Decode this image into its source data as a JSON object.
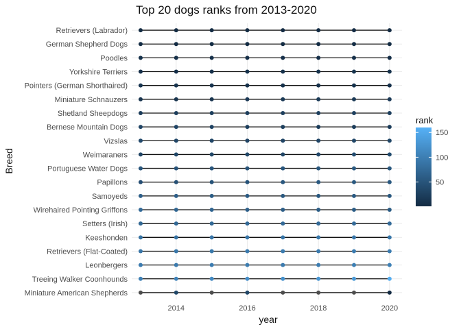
{
  "chart_data": {
    "type": "line",
    "title": "Top 20 dogs ranks from 2013-2020",
    "xlabel": "year",
    "ylabel": "Breed",
    "x": [
      2013,
      2014,
      2015,
      2016,
      2017,
      2018,
      2019,
      2020
    ],
    "x_ticks": [
      2014,
      2016,
      2018,
      2020
    ],
    "xlim": [
      2012.75,
      2020.35
    ],
    "grid": true,
    "categories": [
      "Retrievers (Labrador)",
      "German Shepherd Dogs",
      "Poodles",
      "Yorkshire Terriers",
      "Pointers (German Shorthaired)",
      "Miniature Schnauzers",
      "Shetland Sheepdogs",
      "Bernese Mountain Dogs",
      "Vizslas",
      "Weimaraners",
      "Portuguese Water Dogs",
      "Papillons",
      "Samoyeds",
      "Wirehaired Pointing Griffons",
      "Setters (Irish)",
      "Keeshonden",
      "Retrievers (Flat-Coated)",
      "Leonbergers",
      "Treeing Walker Coonhounds",
      "Miniature American Shepherds"
    ],
    "color_legend": {
      "title": "rank",
      "ticks": [
        50,
        100,
        150
      ],
      "min": 1,
      "max": 160,
      "low_color": "#132B43",
      "high_color": "#56B1F7",
      "na_color": "#4d4d4d"
    },
    "series": [
      {
        "values": [
          1,
          1,
          1,
          1,
          1,
          1,
          1,
          1
        ]
      },
      {
        "values": [
          2,
          2,
          2,
          2,
          2,
          2,
          3,
          3
        ]
      },
      {
        "values": [
          8,
          7,
          7,
          7,
          7,
          7,
          6,
          5
        ]
      },
      {
        "values": [
          6,
          6,
          6,
          9,
          9,
          10,
          10,
          10
        ]
      },
      {
        "values": [
          13,
          12,
          11,
          8,
          8,
          8,
          9,
          8
        ]
      },
      {
        "values": [
          12,
          11,
          12,
          17,
          18,
          19,
          18,
          19
        ]
      },
      {
        "values": [
          21,
          22,
          23,
          24,
          24,
          25,
          25,
          26
        ]
      },
      {
        "values": [
          32,
          32,
          29,
          25,
          25,
          22,
          22,
          22
        ]
      },
      {
        "values": [
          37,
          33,
          32,
          31,
          31,
          32,
          33,
          33
        ]
      },
      {
        "values": [
          32,
          34,
          34,
          35,
          34,
          36,
          40,
          40
        ]
      },
      {
        "values": [
          51,
          49,
          51,
          50,
          51,
          53,
          55,
          55
        ]
      },
      {
        "values": [
          43,
          45,
          47,
          49,
          53,
          55,
          54,
          55
        ]
      },
      {
        "values": [
          63,
          62,
          59,
          58,
          55,
          54,
          55,
          54
        ]
      },
      {
        "values": [
          76,
          71,
          69,
          64,
          62,
          60,
          59,
          59
        ]
      },
      {
        "values": [
          72,
          73,
          73,
          76,
          76,
          76,
          76,
          77
        ]
      },
      {
        "values": [
          86,
          87,
          89,
          91,
          91,
          92,
          90,
          91
        ]
      },
      {
        "values": [
          90,
          91,
          92,
          96,
          97,
          96,
          96,
          98
        ]
      },
      {
        "values": [
          96,
          95,
          97,
          98,
          96,
          98,
          99,
          103
        ]
      },
      {
        "values": [
          102,
          105,
          112,
          119,
          122,
          127,
          130,
          155
        ]
      },
      {
        "values": [
          null,
          35,
          null,
          34,
          null,
          null,
          null,
          1
        ]
      }
    ]
  }
}
